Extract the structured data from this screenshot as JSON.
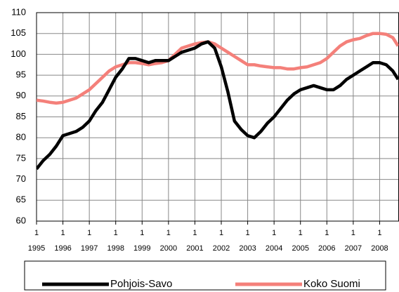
{
  "chart_data": {
    "type": "line",
    "x": [
      1995,
      1995.25,
      1995.5,
      1995.75,
      1996,
      1996.25,
      1996.5,
      1996.75,
      1997,
      1997.25,
      1997.5,
      1997.75,
      1998,
      1998.25,
      1998.5,
      1998.75,
      1999,
      1999.25,
      1999.5,
      1999.75,
      2000,
      2000.25,
      2000.5,
      2000.75,
      2001,
      2001.25,
      2001.5,
      2001.75,
      2002,
      2002.25,
      2002.5,
      2002.75,
      2003,
      2003.25,
      2003.5,
      2003.75,
      2004,
      2004.25,
      2004.5,
      2004.75,
      2005,
      2005.25,
      2005.5,
      2005.75,
      2006,
      2006.25,
      2006.5,
      2006.75,
      2007,
      2007.25,
      2007.5,
      2007.75,
      2008,
      2008.25,
      2008.5,
      2008.7
    ],
    "series": [
      {
        "name": "Pohjois-Savo",
        "color": "#000000",
        "values": [
          72.5,
          74.5,
          76,
          78,
          80.5,
          81,
          81.5,
          82.5,
          84,
          86.5,
          88.5,
          91.5,
          94.5,
          96.5,
          99,
          99,
          98.5,
          98,
          98.5,
          98.5,
          98.5,
          99.5,
          100.5,
          101,
          101.5,
          102.5,
          103,
          101.5,
          97,
          91,
          84,
          82,
          80.5,
          80,
          81.5,
          83.5,
          85,
          87,
          89,
          90.5,
          91.5,
          92,
          92.5,
          92,
          91.5,
          91.5,
          92.5,
          94,
          95,
          96,
          97,
          98,
          98,
          97.5,
          96,
          94
        ]
      },
      {
        "name": "Koko Suomi",
        "color": "#f4807a",
        "values": [
          89,
          88.8,
          88.5,
          88.3,
          88.5,
          89,
          89.5,
          90.5,
          91.5,
          93,
          94.5,
          96,
          97,
          97.5,
          98,
          98,
          97.8,
          97.5,
          97.8,
          98,
          98.5,
          100,
          101.5,
          102,
          102.5,
          102.8,
          103,
          102.5,
          101.5,
          100.5,
          99.5,
          98.5,
          97.5,
          97.5,
          97.2,
          97,
          96.8,
          96.8,
          96.5,
          96.5,
          96.8,
          97,
          97.5,
          98,
          99,
          100.5,
          102,
          103,
          103.5,
          103.8,
          104.5,
          105,
          105,
          104.8,
          104,
          102
        ]
      }
    ],
    "xlim": [
      1995,
      2008.72
    ],
    "xticks": [
      {
        "value": 1995,
        "label": "1995",
        "quarter": "1"
      },
      {
        "value": 1996,
        "label": "1996",
        "quarter": "1"
      },
      {
        "value": 1997,
        "label": "1997",
        "quarter": "1"
      },
      {
        "value": 1998,
        "label": "1998",
        "quarter": "1"
      },
      {
        "value": 1999,
        "label": "1999",
        "quarter": "1"
      },
      {
        "value": 2000,
        "label": "2000",
        "quarter": "1"
      },
      {
        "value": 2001,
        "label": "2001",
        "quarter": "1"
      },
      {
        "value": 2002,
        "label": "2002",
        "quarter": "1"
      },
      {
        "value": 2003,
        "label": "2003",
        "quarter": "1"
      },
      {
        "value": 2004,
        "label": "2004",
        "quarter": "1"
      },
      {
        "value": 2005,
        "label": "2005",
        "quarter": "1"
      },
      {
        "value": 2006,
        "label": "2006",
        "quarter": "1"
      },
      {
        "value": 2007,
        "label": "2007",
        "quarter": "1"
      },
      {
        "value": 2008,
        "label": "2008",
        "quarter": "1"
      }
    ],
    "ylim": [
      60,
      110
    ],
    "yticks": [
      60,
      65,
      70,
      75,
      80,
      85,
      90,
      95,
      100,
      105,
      110
    ],
    "grid": true,
    "legend": "bottom"
  }
}
